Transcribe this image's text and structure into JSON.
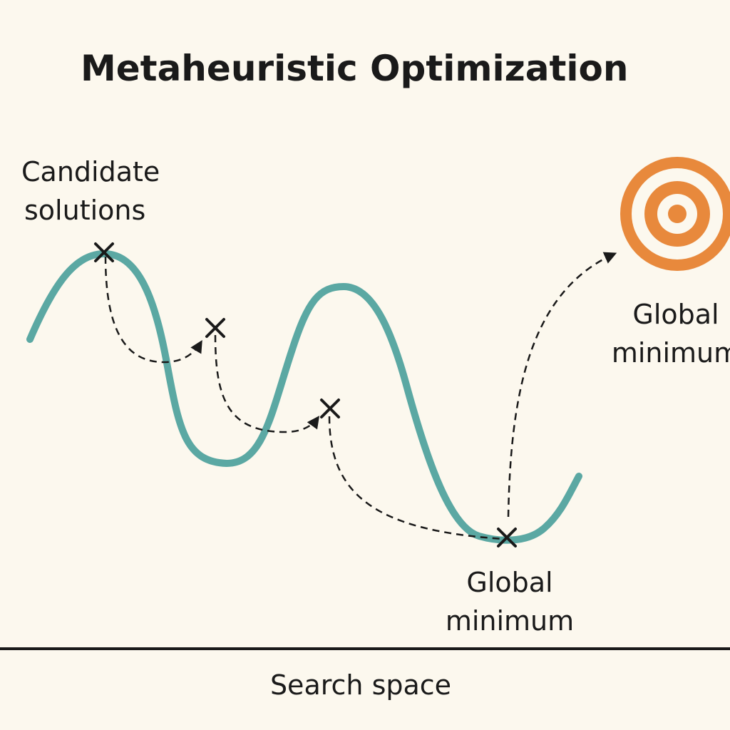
{
  "title": "Metaheuristic Optimization",
  "labels": {
    "candidate_line1": "Candidate",
    "candidate_line2": "solutions",
    "global_min_line1": "Global",
    "global_min_line2": "minimum",
    "target_line1": "Global",
    "target_line2": "minimum"
  },
  "axis": {
    "label": "Search space"
  },
  "colors": {
    "background": "#fcf8ee",
    "curve": "#5ba8a3",
    "target": "#e8893c",
    "ink": "#1a1a1a"
  },
  "icons": {
    "marker": "x-marker-icon",
    "target": "target-icon"
  }
}
